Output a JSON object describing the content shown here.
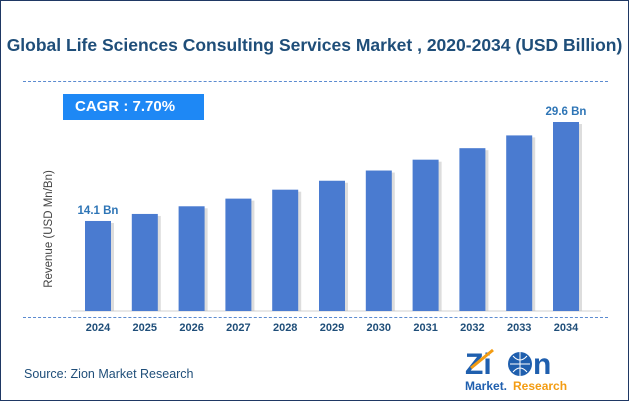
{
  "chart_data": {
    "type": "bar",
    "title": "Global Life Sciences Consulting Services Market , 2020-2034 (USD Billion)",
    "ylabel": "Revenue (USD Mn/Bn)",
    "xlabel": "",
    "categories": [
      "2024",
      "2025",
      "2026",
      "2027",
      "2028",
      "2029",
      "2030",
      "2031",
      "2032",
      "2033",
      "2034"
    ],
    "values": [
      14.1,
      15.2,
      16.4,
      17.6,
      19.0,
      20.4,
      22.0,
      23.7,
      25.5,
      27.5,
      29.6
    ],
    "data_labels": {
      "0": "14.1 Bn",
      "10": "29.6 Bn"
    },
    "ylim": [
      0,
      30
    ],
    "grid": false,
    "bar_color": "#4a7bd0",
    "annotation": "CAGR : 7.70%"
  },
  "source": "Source: Zion Market Research",
  "logo": {
    "text_top": "Zion",
    "text_bottom": "Market.Research"
  }
}
